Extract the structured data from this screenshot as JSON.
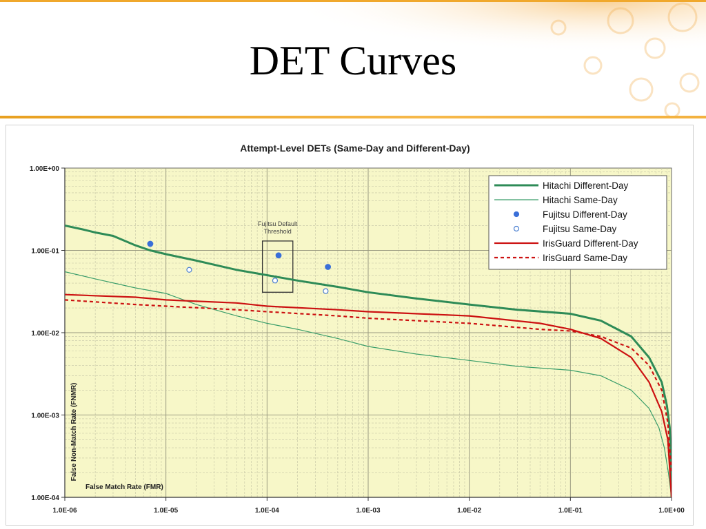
{
  "slide": {
    "title": "DET Curves",
    "accent_color": "#f0a82c"
  },
  "chart_data": {
    "type": "line",
    "title": "Attempt-Level DETs (Same-Day and Different-Day)",
    "xlabel": "False Match Rate (FMR)",
    "ylabel": "False Non-Match Rate (FNMR)",
    "x_scale": "log",
    "y_scale": "log",
    "xlim": [
      1e-06,
      1
    ],
    "ylim": [
      0.0001,
      1
    ],
    "x_ticks": [
      {
        "value": 1e-06,
        "label": "1.0E-06"
      },
      {
        "value": 1e-05,
        "label": "1.0E-05"
      },
      {
        "value": 0.0001,
        "label": "1.0E-04"
      },
      {
        "value": 0.001,
        "label": "1.0E-03"
      },
      {
        "value": 0.01,
        "label": "1.0E-02"
      },
      {
        "value": 0.1,
        "label": "1.0E-01"
      },
      {
        "value": 1,
        "label": "1.0E+00"
      }
    ],
    "y_ticks": [
      {
        "value": 1,
        "label": "1.00E+00"
      },
      {
        "value": 0.1,
        "label": "1.00E-01"
      },
      {
        "value": 0.01,
        "label": "1.00E-02"
      },
      {
        "value": 0.001,
        "label": "1.00E-03"
      },
      {
        "value": 0.0001,
        "label": "1.00E-04"
      }
    ],
    "grid": true,
    "plot_background": "#f7f7c8",
    "legend_position": "top-right",
    "series": [
      {
        "name": "Hitachi Different-Day",
        "style": "solid-thick",
        "color": "#2e8b57",
        "points": [
          [
            1e-06,
            0.2
          ],
          [
            1.5e-06,
            0.18
          ],
          [
            2e-06,
            0.165
          ],
          [
            3e-06,
            0.15
          ],
          [
            5e-06,
            0.115
          ],
          [
            7e-06,
            0.1
          ],
          [
            1e-05,
            0.09
          ],
          [
            2e-05,
            0.075
          ],
          [
            5e-05,
            0.058
          ],
          [
            0.0001,
            0.05
          ],
          [
            0.0002,
            0.043
          ],
          [
            0.0005,
            0.036
          ],
          [
            0.001,
            0.031
          ],
          [
            0.003,
            0.026
          ],
          [
            0.01,
            0.022
          ],
          [
            0.03,
            0.019
          ],
          [
            0.1,
            0.017
          ],
          [
            0.2,
            0.014
          ],
          [
            0.4,
            0.009
          ],
          [
            0.6,
            0.005
          ],
          [
            0.8,
            0.0025
          ],
          [
            0.9,
            0.0013
          ],
          [
            0.96,
            0.0007
          ],
          [
            0.985,
            0.0003
          ],
          [
            1,
            0.0001
          ]
        ]
      },
      {
        "name": "Hitachi Same-Day",
        "style": "solid-thin",
        "color": "#3a9d6a",
        "points": [
          [
            1e-06,
            0.055
          ],
          [
            2e-06,
            0.045
          ],
          [
            5e-06,
            0.035
          ],
          [
            1e-05,
            0.03
          ],
          [
            2e-05,
            0.022
          ],
          [
            5e-05,
            0.016
          ],
          [
            0.0001,
            0.013
          ],
          [
            0.0002,
            0.011
          ],
          [
            0.0005,
            0.0085
          ],
          [
            0.001,
            0.0068
          ],
          [
            0.003,
            0.0055
          ],
          [
            0.01,
            0.0046
          ],
          [
            0.03,
            0.0039
          ],
          [
            0.1,
            0.0035
          ],
          [
            0.2,
            0.003
          ],
          [
            0.4,
            0.002
          ],
          [
            0.6,
            0.0012
          ],
          [
            0.75,
            0.0007
          ],
          [
            0.85,
            0.0004
          ],
          [
            0.93,
            0.0002
          ],
          [
            1,
            0.0001
          ]
        ]
      },
      {
        "name": "Fujitsu Different-Day",
        "style": "marker-filled",
        "color": "#3a6fd8",
        "points": [
          [
            7e-06,
            0.12
          ],
          [
            0.00013,
            0.087
          ],
          [
            0.0004,
            0.063
          ]
        ]
      },
      {
        "name": "Fujitsu Same-Day",
        "style": "marker-open",
        "color": "#4a7fd0",
        "points": [
          [
            1.7e-05,
            0.058
          ],
          [
            0.00012,
            0.043
          ],
          [
            0.00038,
            0.032
          ]
        ]
      },
      {
        "name": "IrisGuard Different-Day",
        "style": "solid",
        "color": "#cc1111",
        "points": [
          [
            1e-06,
            0.029
          ],
          [
            5e-06,
            0.027
          ],
          [
            1e-05,
            0.025
          ],
          [
            5e-05,
            0.023
          ],
          [
            0.0001,
            0.021
          ],
          [
            0.0005,
            0.019
          ],
          [
            0.001,
            0.018
          ],
          [
            0.01,
            0.016
          ],
          [
            0.05,
            0.013
          ],
          [
            0.1,
            0.011
          ],
          [
            0.2,
            0.0085
          ],
          [
            0.4,
            0.005
          ],
          [
            0.6,
            0.0025
          ],
          [
            0.8,
            0.0011
          ],
          [
            0.92,
            0.0005
          ],
          [
            1,
            0.0001
          ]
        ]
      },
      {
        "name": "IrisGuard Same-Day",
        "style": "dashed",
        "color": "#cc1111",
        "points": [
          [
            1e-06,
            0.025
          ],
          [
            5e-06,
            0.022
          ],
          [
            1e-05,
            0.021
          ],
          [
            5e-05,
            0.019
          ],
          [
            0.0001,
            0.018
          ],
          [
            0.0005,
            0.016
          ],
          [
            0.001,
            0.015
          ],
          [
            0.01,
            0.013
          ],
          [
            0.05,
            0.011
          ],
          [
            0.1,
            0.0105
          ],
          [
            0.2,
            0.009
          ],
          [
            0.4,
            0.0065
          ],
          [
            0.6,
            0.004
          ],
          [
            0.8,
            0.002
          ],
          [
            0.92,
            0.0008
          ],
          [
            1,
            0.0002
          ]
        ]
      }
    ],
    "annotation": {
      "lines": [
        "Fujitsu Default",
        "Threshold"
      ],
      "box_x": [
        9e-05,
        0.00018
      ],
      "box_y": [
        0.031,
        0.13
      ]
    }
  }
}
